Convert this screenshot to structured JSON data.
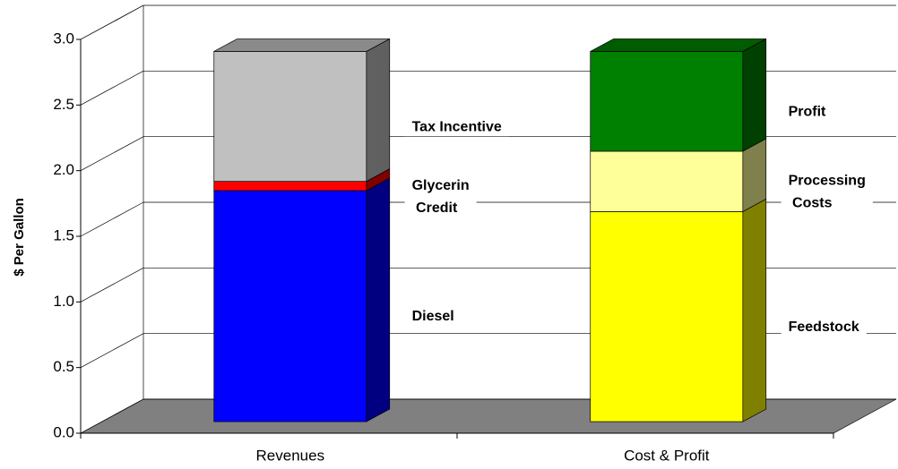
{
  "chart_data": {
    "type": "bar",
    "stacked": true,
    "three_d": true,
    "y_label": "$ Per Gallon",
    "categories": [
      "Revenues",
      "Cost & Profit"
    ],
    "stacks": [
      {
        "segments": [
          {
            "name": "Diesel",
            "color": "#0000ff",
            "value": 1.76
          },
          {
            "name": "Glycerin Credit",
            "color": "#ff0000",
            "value": 0.07
          },
          {
            "name": "Tax Incentive",
            "color": "#c0c0c0",
            "value": 0.99
          }
        ]
      },
      {
        "segments": [
          {
            "name": "Feedstock",
            "color": "#ffff00",
            "value": 1.6
          },
          {
            "name": "Processing Costs",
            "color": "#ffff99",
            "value": 0.46
          },
          {
            "name": "Profit",
            "color": "#008000",
            "value": 0.76
          }
        ]
      }
    ],
    "ylim": [
      0,
      3
    ],
    "yticks": [
      {
        "value": 0,
        "label": "0.0"
      },
      0.5,
      {
        "value": 1,
        "label": "1.0"
      },
      1.5,
      {
        "value": 2,
        "label": "2.0"
      },
      2.5,
      {
        "value": 3,
        "label": "3.0"
      }
    ],
    "grid": true,
    "floor_color": "#808080"
  }
}
